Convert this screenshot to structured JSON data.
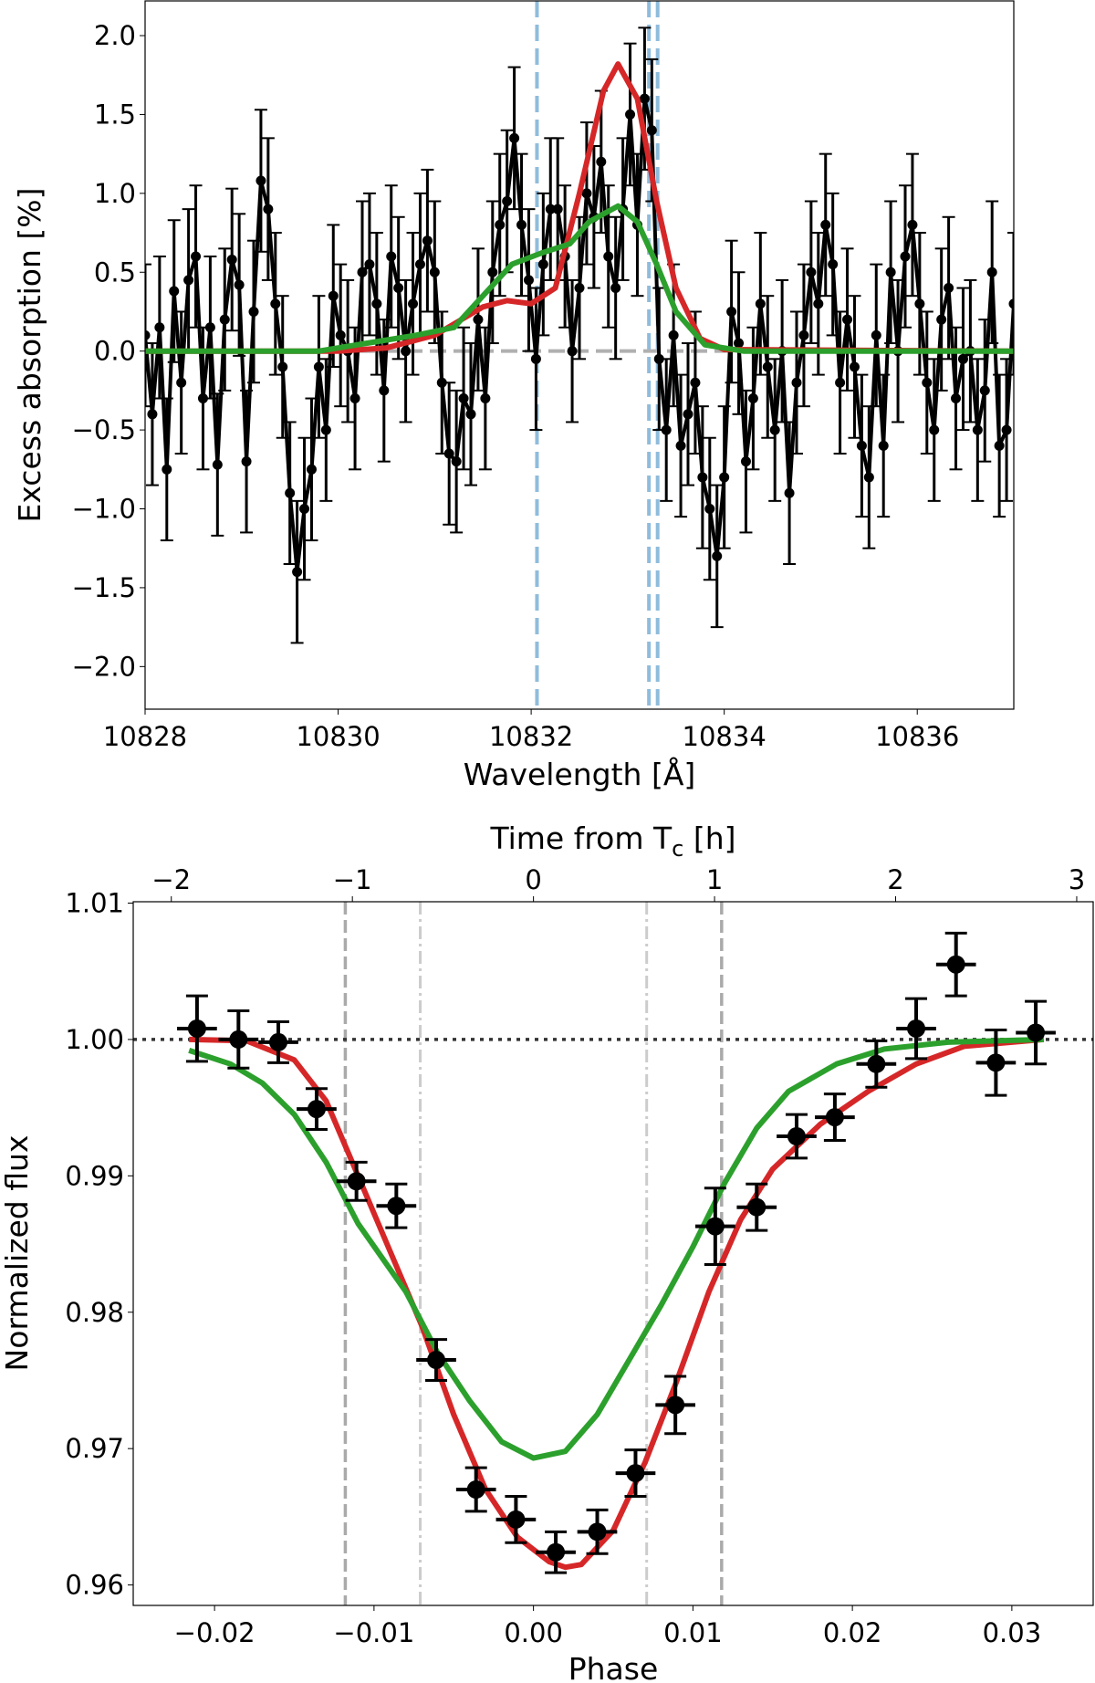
{
  "chart_data": [
    {
      "type": "scatter",
      "xlabel": "Wavelength [Å]",
      "ylabel": "Excess absorption [%]",
      "xlim": [
        10828,
        10837
      ],
      "ylim": [
        -2.27,
        2.22
      ],
      "xticks": [
        10828,
        10830,
        10832,
        10834,
        10836
      ],
      "yticks": [
        "−2.0",
        "−1.5",
        "−1.0",
        "−0.5",
        "0.0",
        "0.5",
        "1.0",
        "1.5",
        "2.0"
      ],
      "ytick_values": [
        -2.0,
        -1.5,
        -1.0,
        -0.5,
        0.0,
        0.5,
        1.0,
        1.5,
        2.0
      ],
      "grid": false,
      "vlines": {
        "values": [
          10832.06,
          10833.22,
          10833.31
        ],
        "color": "#8fbcdc",
        "style": "dashed"
      },
      "hline": {
        "value": 0,
        "color": "#b0b0b0",
        "style": "dashed"
      },
      "data": {
        "color": "#000000",
        "yerr": 0.45,
        "x": [
          10828.0,
          10828.075,
          10828.15,
          10828.225,
          10828.3,
          10828.375,
          10828.45,
          10828.525,
          10828.6,
          10828.675,
          10828.75,
          10828.825,
          10828.9,
          10828.975,
          10829.05,
          10829.125,
          10829.2,
          10829.275,
          10829.35,
          10829.425,
          10829.5,
          10829.575,
          10829.65,
          10829.725,
          10829.8,
          10829.875,
          10829.95,
          10830.025,
          10830.1,
          10830.175,
          10830.25,
          10830.325,
          10830.4,
          10830.475,
          10830.55,
          10830.625,
          10830.7,
          10830.775,
          10830.85,
          10830.925,
          10831.0,
          10831.075,
          10831.15,
          10831.225,
          10831.3,
          10831.375,
          10831.45,
          10831.525,
          10831.6,
          10831.675,
          10831.75,
          10831.825,
          10831.9,
          10831.975,
          10832.05,
          10832.125,
          10832.2,
          10832.275,
          10832.35,
          10832.425,
          10832.5,
          10832.575,
          10832.65,
          10832.725,
          10832.8,
          10832.875,
          10832.95,
          10833.025,
          10833.1,
          10833.175,
          10833.25,
          10833.325,
          10833.4,
          10833.475,
          10833.55,
          10833.625,
          10833.7,
          10833.775,
          10833.85,
          10833.925,
          10834.0,
          10834.075,
          10834.15,
          10834.225,
          10834.3,
          10834.375,
          10834.45,
          10834.525,
          10834.6,
          10834.675,
          10834.75,
          10834.825,
          10834.9,
          10834.975,
          10835.05,
          10835.125,
          10835.2,
          10835.275,
          10835.35,
          10835.425,
          10835.5,
          10835.575,
          10835.65,
          10835.725,
          10835.8,
          10835.875,
          10835.95,
          10836.025,
          10836.1,
          10836.175,
          10836.25,
          10836.325,
          10836.4,
          10836.475,
          10836.55,
          10836.625,
          10836.7,
          10836.775,
          10836.85,
          10836.925,
          10837.0
        ],
        "y": [
          0.1,
          -0.4,
          0.15,
          -0.75,
          0.38,
          -0.2,
          0.45,
          0.6,
          -0.3,
          0.15,
          -0.72,
          0.2,
          0.58,
          0.42,
          -0.7,
          0.25,
          1.08,
          0.9,
          0.3,
          -0.1,
          -0.9,
          -1.4,
          -1.0,
          -0.75,
          -0.1,
          -0.5,
          0.35,
          0.1,
          0.0,
          -0.3,
          0.5,
          0.55,
          0.3,
          -0.25,
          0.6,
          0.4,
          0.0,
          0.3,
          0.55,
          0.7,
          0.5,
          -0.2,
          -0.65,
          -0.7,
          -0.3,
          -0.4,
          0.2,
          -0.3,
          0.5,
          0.8,
          0.95,
          1.35,
          0.8,
          0.45,
          -0.05,
          0.55,
          0.9,
          0.9,
          0.6,
          0.0,
          0.4,
          1.0,
          0.85,
          1.2,
          0.6,
          0.4,
          0.9,
          1.5,
          0.8,
          1.6,
          1.4,
          -0.05,
          -0.5,
          0.1,
          -0.6,
          -0.4,
          -0.2,
          -0.8,
          -1.0,
          -1.3,
          -0.8,
          0.25,
          0.05,
          -0.7,
          -0.3,
          0.3,
          -0.1,
          -0.5,
          0.0,
          -0.9,
          -0.2,
          0.1,
          0.5,
          0.3,
          0.8,
          0.55,
          -0.2,
          0.2,
          -0.1,
          -0.6,
          -0.8,
          0.1,
          -0.6,
          0.5,
          0.0,
          0.6,
          0.8,
          0.3,
          -0.2,
          -0.5,
          0.2,
          0.4,
          -0.3,
          -0.05,
          0.0,
          -0.5,
          -0.25,
          0.5,
          -0.6,
          -0.5,
          0.3
        ]
      },
      "series": [
        {
          "color": "#d62728",
          "x": [
            10828,
            10830,
            10830.5,
            10831,
            10831.5,
            10831.75,
            10832,
            10832.25,
            10832.5,
            10832.75,
            10832.9,
            10833.1,
            10833.3,
            10833.5,
            10833.75,
            10834,
            10837
          ],
          "y": [
            0,
            0,
            0.02,
            0.1,
            0.28,
            0.32,
            0.3,
            0.4,
            1.0,
            1.65,
            1.82,
            1.6,
            0.95,
            0.4,
            0.08,
            0.01,
            0
          ]
        },
        {
          "color": "#2ca02c",
          "x": [
            10828,
            10829.8,
            10830.3,
            10830.8,
            10831.2,
            10831.5,
            10831.8,
            10832.1,
            10832.4,
            10832.6,
            10832.9,
            10833.1,
            10833.3,
            10833.5,
            10833.8,
            10834.2,
            10837
          ],
          "y": [
            0,
            0,
            0.05,
            0.1,
            0.15,
            0.35,
            0.55,
            0.62,
            0.68,
            0.82,
            0.92,
            0.82,
            0.55,
            0.25,
            0.04,
            0,
            0
          ]
        }
      ]
    },
    {
      "type": "scatter",
      "xlabel": "Phase",
      "ylabel": "Normalized flux",
      "top_xlabel_main": "Time from T",
      "top_xlabel_sub": "c",
      "top_xlabel_unit": " [h]",
      "xlim": [
        -0.0251,
        0.0351
      ],
      "ylim": [
        0.9585,
        1.0101
      ],
      "xticks": [
        "−0.02",
        "−0.01",
        "0.00",
        "0.01",
        "0.02",
        "0.03"
      ],
      "xtick_values": [
        -0.02,
        -0.01,
        0.0,
        0.01,
        0.02,
        0.03
      ],
      "yticks": [
        "0.96",
        "0.97",
        "0.98",
        "0.99",
        "1.00",
        "1.01"
      ],
      "ytick_values": [
        0.96,
        0.97,
        0.98,
        0.99,
        1.0,
        1.01
      ],
      "top_xticks": [
        "−2",
        "−1",
        "0",
        "1",
        "2",
        "3"
      ],
      "top_xtick_values": [
        -2,
        -1,
        0,
        1,
        2,
        3
      ],
      "hours_per_phase": 88.06,
      "grid": false,
      "hline": {
        "value": 1.0,
        "color": "#333333",
        "style": "dotted"
      },
      "vlines_dashed": {
        "values": [
          -0.0118,
          0.0118
        ],
        "color": "#aaaaaa"
      },
      "vlines_dashdot": {
        "values": [
          -0.0071,
          0.0071
        ],
        "color": "#cccccc"
      },
      "data": {
        "color": "#000000",
        "xerr": 0.00125,
        "x": [
          -0.0211,
          -0.0185,
          -0.016,
          -0.0136,
          -0.0111,
          -0.0086,
          -0.0061,
          -0.0036,
          -0.0011,
          0.0014,
          0.004,
          0.0064,
          0.0089,
          0.0114,
          0.014,
          0.0165,
          0.0189,
          0.0215,
          0.024,
          0.0265,
          0.029,
          0.0315
        ],
        "y": [
          1.0008,
          1.0,
          0.9998,
          0.9949,
          0.9896,
          0.9878,
          0.9765,
          0.967,
          0.9648,
          0.9624,
          0.9639,
          0.9682,
          0.9732,
          0.9863,
          0.9877,
          0.9929,
          0.9943,
          0.9982,
          1.0008,
          1.0055,
          0.9983,
          1.0005
        ],
        "yerr": [
          0.0024,
          0.0021,
          0.0015,
          0.0015,
          0.0014,
          0.0016,
          0.0015,
          0.0016,
          0.0017,
          0.0015,
          0.0016,
          0.0017,
          0.0021,
          0.0028,
          0.0017,
          0.0016,
          0.0017,
          0.0017,
          0.0022,
          0.0023,
          0.0024,
          0.0023
        ]
      },
      "series": [
        {
          "color": "#d62728",
          "x": [
            -0.0216,
            -0.018,
            -0.015,
            -0.013,
            -0.011,
            -0.009,
            -0.007,
            -0.005,
            -0.003,
            -0.001,
            0.001,
            0.002,
            0.003,
            0.005,
            0.007,
            0.009,
            0.011,
            0.013,
            0.015,
            0.018,
            0.021,
            0.024,
            0.027,
            0.032
          ],
          "y": [
            1.0,
            0.9999,
            0.9985,
            0.9955,
            0.99,
            0.9845,
            0.979,
            0.9725,
            0.967,
            0.9635,
            0.9617,
            0.9613,
            0.9615,
            0.964,
            0.969,
            0.975,
            0.9815,
            0.9868,
            0.9905,
            0.9938,
            0.9962,
            0.9982,
            0.9995,
            1.0
          ]
        },
        {
          "color": "#2ca02c",
          "x": [
            -0.0216,
            -0.019,
            -0.017,
            -0.015,
            -0.013,
            -0.011,
            -0.008,
            -0.006,
            -0.004,
            -0.002,
            0.0,
            0.002,
            0.004,
            0.006,
            0.008,
            0.01,
            0.012,
            0.014,
            0.016,
            0.019,
            0.022,
            0.026,
            0.032
          ],
          "y": [
            0.9992,
            0.9982,
            0.9968,
            0.9945,
            0.991,
            0.9865,
            0.9815,
            0.977,
            0.9735,
            0.9705,
            0.9693,
            0.9698,
            0.9725,
            0.9765,
            0.9805,
            0.9848,
            0.9895,
            0.9935,
            0.9962,
            0.9982,
            0.9993,
            0.9998,
            1.0
          ]
        }
      ]
    }
  ]
}
